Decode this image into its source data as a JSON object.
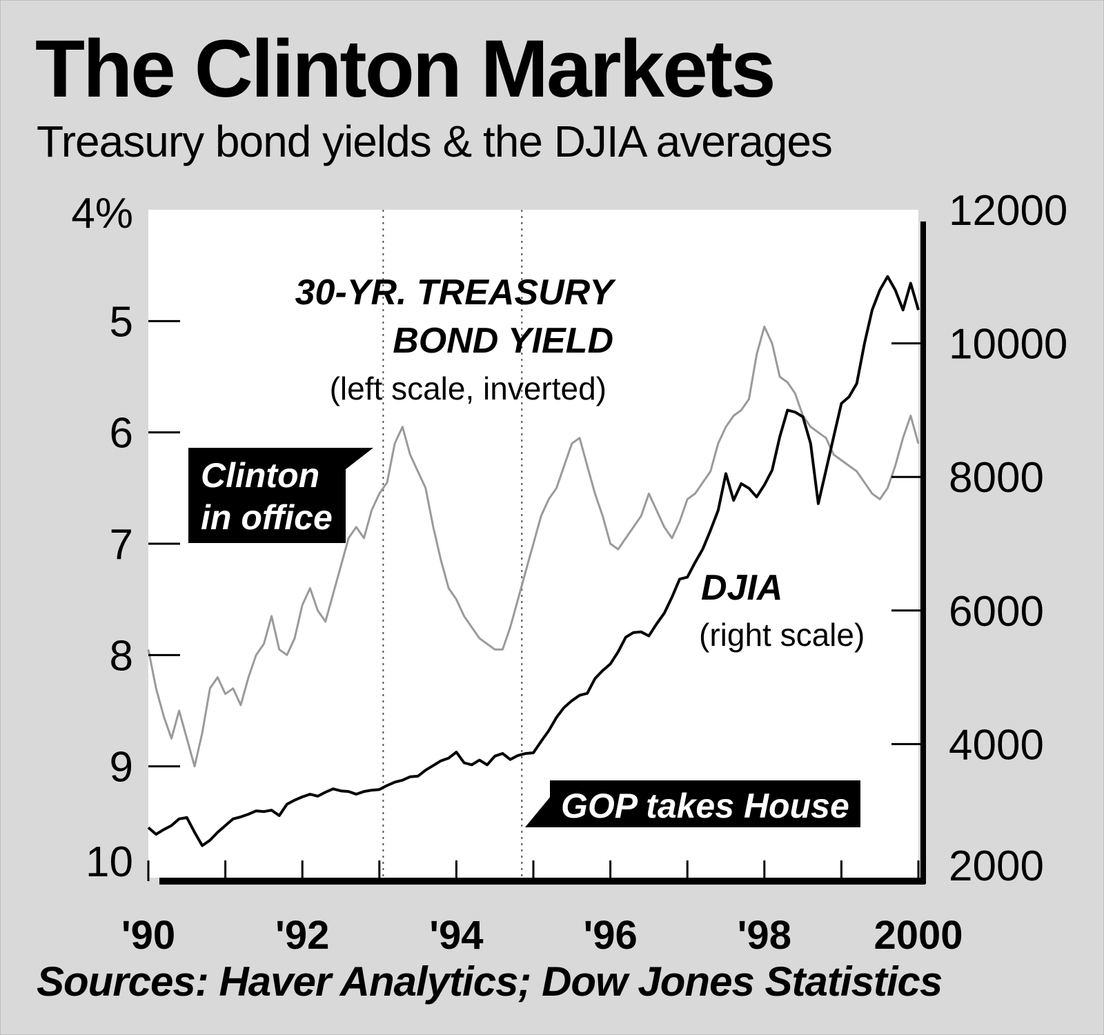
{
  "chart_data": {
    "type": "line",
    "title": "The Clinton Markets",
    "subtitle": "Treasury bond yields & the DJIA averages",
    "source": "Sources: Haver Analytics; Dow Jones Statistics",
    "x_ticks": [
      "'90",
      "'92",
      "'94",
      "'96",
      "'98",
      "2000"
    ],
    "x_tick_values": [
      1990,
      1992,
      1994,
      1996,
      1998,
      2000
    ],
    "xlim": [
      1990.0,
      2000.0
    ],
    "left_axis": {
      "ticks": [
        "4%",
        "5",
        "6",
        "7",
        "8",
        "9",
        "10"
      ],
      "values": [
        4,
        5,
        6,
        7,
        8,
        9,
        10
      ],
      "lim": [
        4,
        10
      ],
      "inverted": true
    },
    "right_axis": {
      "ticks": [
        "12000",
        "10000",
        "8000",
        "6000",
        "4000",
        "2000"
      ],
      "values": [
        12000,
        10000,
        8000,
        6000,
        4000,
        2000
      ],
      "lim": [
        2000,
        12000
      ]
    },
    "grid": false,
    "vertical_markers": [
      1993.05,
      1994.85
    ],
    "series": [
      {
        "name": "30-YR. TREASURY BOND YIELD",
        "axis": "left",
        "color": "#9a9a9a",
        "x": [
          1990.0,
          1990.1,
          1990.2,
          1990.3,
          1990.4,
          1990.5,
          1990.6,
          1990.7,
          1990.8,
          1990.9,
          1991.0,
          1991.1,
          1991.2,
          1991.3,
          1991.4,
          1991.5,
          1991.6,
          1991.7,
          1991.8,
          1991.9,
          1992.0,
          1992.1,
          1992.2,
          1992.3,
          1992.4,
          1992.5,
          1992.6,
          1992.7,
          1992.8,
          1992.9,
          1993.0,
          1993.1,
          1993.2,
          1993.3,
          1993.4,
          1993.5,
          1993.6,
          1993.7,
          1993.8,
          1993.9,
          1994.0,
          1994.1,
          1994.2,
          1994.3,
          1994.4,
          1994.5,
          1994.6,
          1994.7,
          1994.8,
          1994.9,
          1995.0,
          1995.1,
          1995.2,
          1995.3,
          1995.4,
          1995.5,
          1995.6,
          1995.7,
          1995.8,
          1995.9,
          1996.0,
          1996.1,
          1996.2,
          1996.3,
          1996.4,
          1996.5,
          1996.6,
          1996.7,
          1996.8,
          1996.9,
          1997.0,
          1997.1,
          1997.2,
          1997.3,
          1997.4,
          1997.5,
          1997.6,
          1997.7,
          1997.8,
          1997.9,
          1998.0,
          1998.1,
          1998.2,
          1998.3,
          1998.4,
          1998.5,
          1998.6,
          1998.7,
          1998.8,
          1998.9,
          1999.0,
          1999.1,
          1999.2,
          1999.3,
          1999.4,
          1999.5,
          1999.6,
          1999.7,
          1999.8,
          1999.9,
          2000.0
        ],
        "values": [
          7.95,
          8.3,
          8.55,
          8.75,
          8.5,
          8.75,
          9.0,
          8.7,
          8.3,
          8.2,
          8.35,
          8.3,
          8.45,
          8.2,
          8.0,
          7.9,
          7.65,
          7.95,
          8.0,
          7.85,
          7.55,
          7.4,
          7.6,
          7.7,
          7.45,
          7.2,
          6.95,
          6.85,
          6.95,
          6.7,
          6.55,
          6.45,
          6.1,
          5.95,
          6.2,
          6.35,
          6.5,
          6.85,
          7.15,
          7.4,
          7.5,
          7.65,
          7.75,
          7.85,
          7.9,
          7.95,
          7.95,
          7.75,
          7.5,
          7.25,
          7.0,
          6.75,
          6.6,
          6.5,
          6.3,
          6.1,
          6.05,
          6.3,
          6.55,
          6.75,
          7.0,
          7.05,
          6.95,
          6.85,
          6.75,
          6.55,
          6.7,
          6.85,
          6.95,
          6.8,
          6.6,
          6.55,
          6.45,
          6.35,
          6.1,
          5.95,
          5.85,
          5.8,
          5.7,
          5.3,
          5.05,
          5.2,
          5.5,
          5.55,
          5.65,
          5.85,
          5.95,
          6.0,
          6.05,
          6.2,
          6.25,
          6.3,
          6.35,
          6.45,
          6.55,
          6.6,
          6.5,
          6.3,
          6.05,
          5.85,
          6.1
        ]
      },
      {
        "name": "DJIA",
        "axis": "right",
        "color": "#000000",
        "x": [
          1990.0,
          1990.1,
          1990.2,
          1990.3,
          1990.4,
          1990.5,
          1990.6,
          1990.7,
          1990.8,
          1990.9,
          1991.0,
          1991.1,
          1991.2,
          1991.3,
          1991.4,
          1991.5,
          1991.6,
          1991.7,
          1991.8,
          1991.9,
          1992.0,
          1992.1,
          1992.2,
          1992.3,
          1992.4,
          1992.5,
          1992.6,
          1992.7,
          1992.8,
          1992.9,
          1993.0,
          1993.1,
          1993.2,
          1993.3,
          1993.4,
          1993.5,
          1993.6,
          1993.7,
          1993.8,
          1993.9,
          1994.0,
          1994.1,
          1994.2,
          1994.3,
          1994.4,
          1994.5,
          1994.6,
          1994.7,
          1994.8,
          1994.9,
          1995.0,
          1995.1,
          1995.2,
          1995.3,
          1995.4,
          1995.5,
          1995.6,
          1995.7,
          1995.8,
          1995.9,
          1996.0,
          1996.1,
          1996.2,
          1996.3,
          1996.4,
          1996.5,
          1996.6,
          1996.7,
          1996.8,
          1996.9,
          1997.0,
          1997.1,
          1997.2,
          1997.3,
          1997.4,
          1997.5,
          1997.6,
          1997.7,
          1997.8,
          1997.9,
          1998.0,
          1998.1,
          1998.2,
          1998.3,
          1998.4,
          1998.5,
          1998.6,
          1998.7,
          1998.8,
          1998.9,
          1999.0,
          1999.1,
          1999.2,
          1999.3,
          1999.4,
          1999.5,
          1999.6,
          1999.7,
          1999.8,
          1999.9,
          2000.0
        ],
        "values": [
          2750,
          2650,
          2720,
          2780,
          2880,
          2900,
          2680,
          2480,
          2560,
          2680,
          2780,
          2880,
          2910,
          2950,
          3000,
          2990,
          3010,
          2930,
          3100,
          3160,
          3210,
          3250,
          3220,
          3280,
          3330,
          3300,
          3290,
          3250,
          3290,
          3310,
          3320,
          3380,
          3430,
          3460,
          3510,
          3520,
          3610,
          3680,
          3750,
          3790,
          3880,
          3720,
          3690,
          3760,
          3690,
          3820,
          3860,
          3770,
          3830,
          3860,
          3870,
          4040,
          4200,
          4400,
          4550,
          4650,
          4730,
          4760,
          4980,
          5100,
          5200,
          5380,
          5600,
          5670,
          5680,
          5620,
          5800,
          5960,
          6200,
          6470,
          6500,
          6720,
          6920,
          7200,
          7500,
          8050,
          7650,
          7900,
          7830,
          7700,
          7880,
          8100,
          8600,
          9000,
          8970,
          8900,
          8500,
          7600,
          8100,
          8600,
          9100,
          9200,
          9400,
          10000,
          10500,
          10800,
          11000,
          10800,
          10500,
          10900,
          10500
        ]
      }
    ],
    "annotations": {
      "treasury_label_line1": "30-YR. TREASURY",
      "treasury_label_line2": "BOND YIELD",
      "treasury_scale": "(left scale, inverted)",
      "djia_label": "DJIA",
      "djia_scale": "(right scale)",
      "clinton_box_line1": "Clinton",
      "clinton_box_line2": "in office",
      "gop_box": "GOP takes House"
    }
  }
}
